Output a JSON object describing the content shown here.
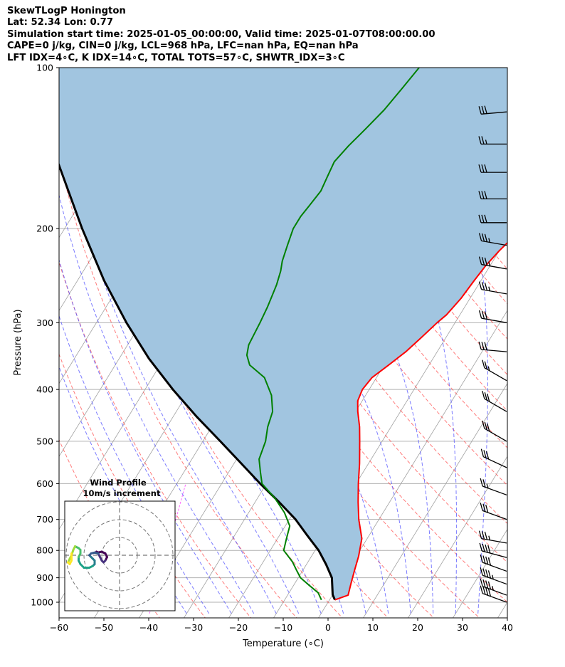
{
  "header": {
    "line1": "SkewTLogP Honington",
    "line2": "Lat: 52.34   Lon: 0.77",
    "line3": "Simulation start time: 2025-01-05_00:00:00, Valid time: 2025-01-07T08:00:00.00",
    "line4": "CAPE=0 j/kg, CIN=0 j/kg, LCL=968 hPa, LFC=nan hPa, EQ=nan hPa",
    "line5": "LFT IDX=4∘C, K IDX=14∘C, TOTAL TOTS=57∘C, SHWTR_IDX=3∘C"
  },
  "chart_data": {
    "type": "line",
    "title": "SkewTLogP Honington",
    "xlabel": "Temperature (∘C)",
    "ylabel": "Pressure (hPa)",
    "xlim": [
      -60,
      40
    ],
    "ylim": [
      1050,
      100
    ],
    "y_scale": "log",
    "x_ticks": [
      "−60",
      "−50",
      "−40",
      "−30",
      "−20",
      "−10",
      "0",
      "10",
      "20",
      "30",
      "40"
    ],
    "y_ticks": [
      "100",
      "200",
      "300",
      "400",
      "500",
      "600",
      "700",
      "800",
      "900",
      "1000"
    ],
    "grid": true,
    "temperature": {
      "color": "#ff0000",
      "points": [
        [
          1.2,
          990
        ],
        [
          3.5,
          970
        ],
        [
          2.5,
          920
        ],
        [
          1.5,
          870
        ],
        [
          0.5,
          820
        ],
        [
          -1.2,
          760
        ],
        [
          -4.5,
          700
        ],
        [
          -7,
          650
        ],
        [
          -9.5,
          600
        ],
        [
          -12,
          550
        ],
        [
          -15,
          500
        ],
        [
          -17,
          470
        ],
        [
          -19.5,
          440
        ],
        [
          -21,
          420
        ],
        [
          -21.5,
          400
        ],
        [
          -21,
          380
        ],
        [
          -19,
          360
        ],
        [
          -17,
          340
        ],
        [
          -15.5,
          320
        ],
        [
          -14,
          300
        ],
        [
          -13,
          290
        ],
        [
          -12,
          270
        ],
        [
          -11.5,
          250
        ],
        [
          -11,
          235
        ],
        [
          -10,
          220
        ],
        [
          -8.5,
          205
        ],
        [
          -7,
          195
        ],
        [
          -5,
          180
        ],
        [
          -4,
          170
        ],
        [
          -3,
          160
        ],
        [
          -2.5,
          150
        ],
        [
          -2,
          140
        ],
        [
          -1.5,
          130
        ],
        [
          0,
          120
        ],
        [
          2,
          110
        ],
        [
          4,
          100
        ]
      ]
    },
    "dewpoint": {
      "color": "#008000",
      "points": [
        [
          -1.8,
          990
        ],
        [
          -3.5,
          960
        ],
        [
          -6.5,
          930
        ],
        [
          -9.5,
          900
        ],
        [
          -11.5,
          870
        ],
        [
          -13.5,
          840
        ],
        [
          -17,
          800
        ],
        [
          -18,
          760
        ],
        [
          -19,
          720
        ],
        [
          -22,
          680
        ],
        [
          -26,
          640
        ],
        [
          -31,
          600
        ],
        [
          -33,
          570
        ],
        [
          -35,
          540
        ],
        [
          -36,
          500
        ],
        [
          -37.5,
          470
        ],
        [
          -38.5,
          440
        ],
        [
          -41,
          410
        ],
        [
          -45,
          380
        ],
        [
          -50,
          360
        ],
        [
          -52,
          345
        ],
        [
          -53,
          330
        ],
        [
          -53.5,
          300
        ],
        [
          -54,
          280
        ],
        [
          -55,
          255
        ],
        [
          -56,
          240
        ],
        [
          -57,
          230
        ],
        [
          -58,
          215
        ],
        [
          -59,
          200
        ],
        [
          -59,
          190
        ],
        [
          -58.5,
          180
        ],
        [
          -58,
          170
        ],
        [
          -58.5,
          160
        ],
        [
          -59,
          150
        ],
        [
          -58,
          140
        ],
        [
          -56.5,
          130
        ],
        [
          -55,
          120
        ],
        [
          -54,
          110
        ],
        [
          -53,
          100
        ]
      ]
    },
    "parcel": {
      "color": "#000000",
      "points": [
        [
          1.2,
          990
        ],
        [
          0,
          968
        ],
        [
          -2.5,
          900
        ],
        [
          -5.6,
          850
        ],
        [
          -9.2,
          800
        ],
        [
          -13.8,
          750
        ],
        [
          -18.6,
          700
        ],
        [
          -24.6,
          650
        ],
        [
          -31.4,
          600
        ],
        [
          -38.4,
          550
        ],
        [
          -46.1,
          500
        ],
        [
          -54.7,
          450
        ],
        [
          -63.8,
          400
        ],
        [
          -73.4,
          350
        ],
        [
          -83.3,
          300
        ],
        [
          -94.1,
          250
        ],
        [
          -106.1,
          200
        ],
        [
          -120.7,
          150
        ],
        [
          -131.9,
          125
        ],
        [
          -145.9,
          100
        ]
      ]
    },
    "cape_cin_fill": {
      "color": "#a1c5e0"
    },
    "reference_lines": {
      "isotherms": {
        "color": "#a0a0a0"
      },
      "dry_adiabats": {
        "color": "#ff5050"
      },
      "moist_adiabats": {
        "color": "#5050ff"
      },
      "mixing_ratio": {
        "color": "#ff00ff"
      }
    },
    "wind_barbs": [
      {
        "p": 1000,
        "dir": 290,
        "kt": 40
      },
      {
        "p": 970,
        "dir": 290,
        "kt": 45
      },
      {
        "p": 925,
        "dir": 290,
        "kt": 45
      },
      {
        "p": 875,
        "dir": 290,
        "kt": 40
      },
      {
        "p": 825,
        "dir": 285,
        "kt": 40
      },
      {
        "p": 775,
        "dir": 280,
        "kt": 35
      },
      {
        "p": 700,
        "dir": 290,
        "kt": 30
      },
      {
        "p": 630,
        "dir": 290,
        "kt": 25
      },
      {
        "p": 560,
        "dir": 295,
        "kt": 30
      },
      {
        "p": 500,
        "dir": 300,
        "kt": 30
      },
      {
        "p": 440,
        "dir": 300,
        "kt": 30
      },
      {
        "p": 385,
        "dir": 300,
        "kt": 25
      },
      {
        "p": 340,
        "dir": 275,
        "kt": 30
      },
      {
        "p": 300,
        "dir": 280,
        "kt": 30
      },
      {
        "p": 265,
        "dir": 280,
        "kt": 35
      },
      {
        "p": 238,
        "dir": 280,
        "kt": 35
      },
      {
        "p": 215,
        "dir": 280,
        "kt": 35
      },
      {
        "p": 195,
        "dir": 270,
        "kt": 30
      },
      {
        "p": 176,
        "dir": 270,
        "kt": 30
      },
      {
        "p": 157,
        "dir": 270,
        "kt": 30
      },
      {
        "p": 139,
        "dir": 270,
        "kt": 25
      },
      {
        "p": 121,
        "dir": 265,
        "kt": 30
      }
    ],
    "wind_profile": {
      "title": "Wind Profile",
      "subtitle": "10m/s increment",
      "colormap": "viridis",
      "points": [
        [
          -13,
          2
        ],
        [
          -12,
          1.5
        ],
        [
          -10,
          2
        ],
        [
          -8,
          1
        ],
        [
          -7,
          -1
        ],
        [
          -8,
          -3
        ],
        [
          -9,
          -4
        ],
        [
          -10,
          -3
        ],
        [
          -11,
          -1
        ],
        [
          -12,
          1
        ],
        [
          -14,
          1.5
        ],
        [
          -16,
          1
        ],
        [
          -17,
          0
        ],
        [
          -16,
          -1
        ],
        [
          -15,
          -2
        ],
        [
          -14,
          -3
        ],
        [
          -14,
          -5
        ],
        [
          -15,
          -6
        ],
        [
          -17,
          -7
        ],
        [
          -20,
          -7
        ],
        [
          -22,
          -5
        ],
        [
          -23,
          -3
        ],
        [
          -23,
          -1
        ],
        [
          -22,
          1
        ],
        [
          -22,
          3
        ],
        [
          -23,
          4
        ],
        [
          -25,
          5
        ],
        [
          -26,
          3
        ],
        [
          -27,
          0
        ],
        [
          -28,
          -2
        ],
        [
          -29,
          -4
        ],
        [
          -28,
          -5
        ],
        [
          -27,
          -3
        ],
        [
          -27,
          -1
        ],
        [
          -27,
          1
        ]
      ]
    }
  }
}
